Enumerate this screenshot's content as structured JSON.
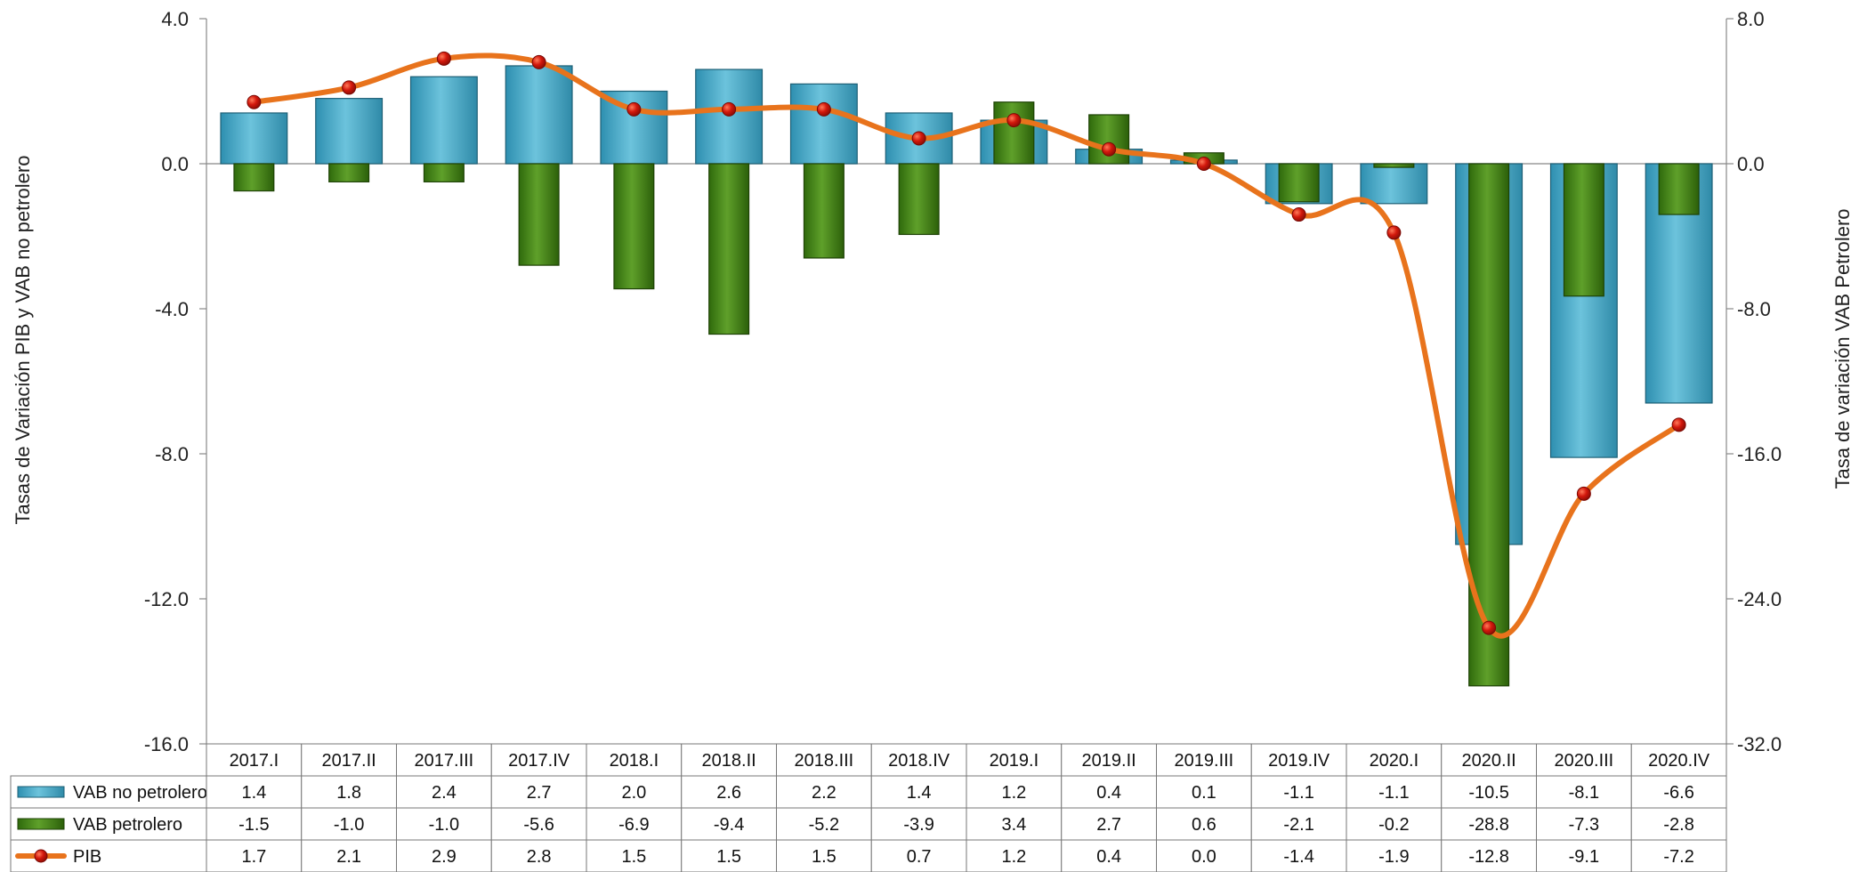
{
  "chart_data": {
    "type": "bar",
    "categories": [
      "2017.I",
      "2017.II",
      "2017.III",
      "2017.IV",
      "2018.I",
      "2018.II",
      "2018.III",
      "2018.IV",
      "2019.I",
      "2019.II",
      "2019.III",
      "2019.IV",
      "2020.I",
      "2020.II",
      "2020.III",
      "2020.IV"
    ],
    "series": [
      {
        "name": "VAB no petrolero",
        "axis": "left",
        "kind": "bar",
        "color": "#4aa8c6",
        "values": [
          1.4,
          1.8,
          2.4,
          2.7,
          2.0,
          2.6,
          2.2,
          1.4,
          1.2,
          0.4,
          0.1,
          -1.1,
          -1.1,
          -10.5,
          -8.1,
          -6.6
        ]
      },
      {
        "name": "VAB petrolero",
        "axis": "right",
        "kind": "bar",
        "color": "#3f7a12",
        "values": [
          -1.5,
          -1.0,
          -1.0,
          -5.6,
          -6.9,
          -9.4,
          -5.2,
          -3.9,
          3.4,
          2.7,
          0.6,
          -2.1,
          -0.2,
          -28.8,
          -7.3,
          -2.8
        ]
      },
      {
        "name": "PIB",
        "axis": "left",
        "kind": "line",
        "color": "#e8731c",
        "marker_color": "#cc1a10",
        "values": [
          1.7,
          2.1,
          2.9,
          2.8,
          1.5,
          1.5,
          1.5,
          0.7,
          1.2,
          0.4,
          0.0,
          -1.4,
          -1.9,
          -12.8,
          -9.1,
          -7.2
        ]
      }
    ],
    "table_values": {
      "VAB no petrolero": [
        "1.4",
        "1.8",
        "2.4",
        "2.7",
        "2.0",
        "2.6",
        "2.2",
        "1.4",
        "1.2",
        "0.4",
        "0.1",
        "-1.1",
        "-1.1",
        "-10.5",
        "-8.1",
        "-6.6"
      ],
      "VAB petrolero": [
        "-1.5",
        "-1.0",
        "-1.0",
        "-5.6",
        "-6.9",
        "-9.4",
        "-5.2",
        "-3.9",
        "3.4",
        "2.7",
        "0.6",
        "-2.1",
        "-0.2",
        "-28.8",
        "-7.3",
        "-2.8"
      ],
      "PIB": [
        "1.7",
        "2.1",
        "2.9",
        "2.8",
        "1.5",
        "1.5",
        "1.5",
        "0.7",
        "1.2",
        "0.4",
        "0.0",
        "-1.4",
        "-1.9",
        "-12.8",
        "-9.1",
        "-7.2"
      ]
    },
    "ylabel_left": "Tasas de Variación PIB y VAB no petrolero",
    "ylabel_right": "Tasa de variación VAB Petrolero",
    "ylim_left": [
      -16,
      4
    ],
    "ylim_right": [
      -32,
      8
    ],
    "yticks_left": [
      "4.0",
      "0.0",
      "-4.0",
      "-8.0",
      "-12.0",
      "-16.0"
    ],
    "yticks_right": [
      "8.0",
      "0.0",
      "-8.0",
      "-16.0",
      "-24.0",
      "-32.0"
    ],
    "legend": "data-table",
    "grid": false
  }
}
